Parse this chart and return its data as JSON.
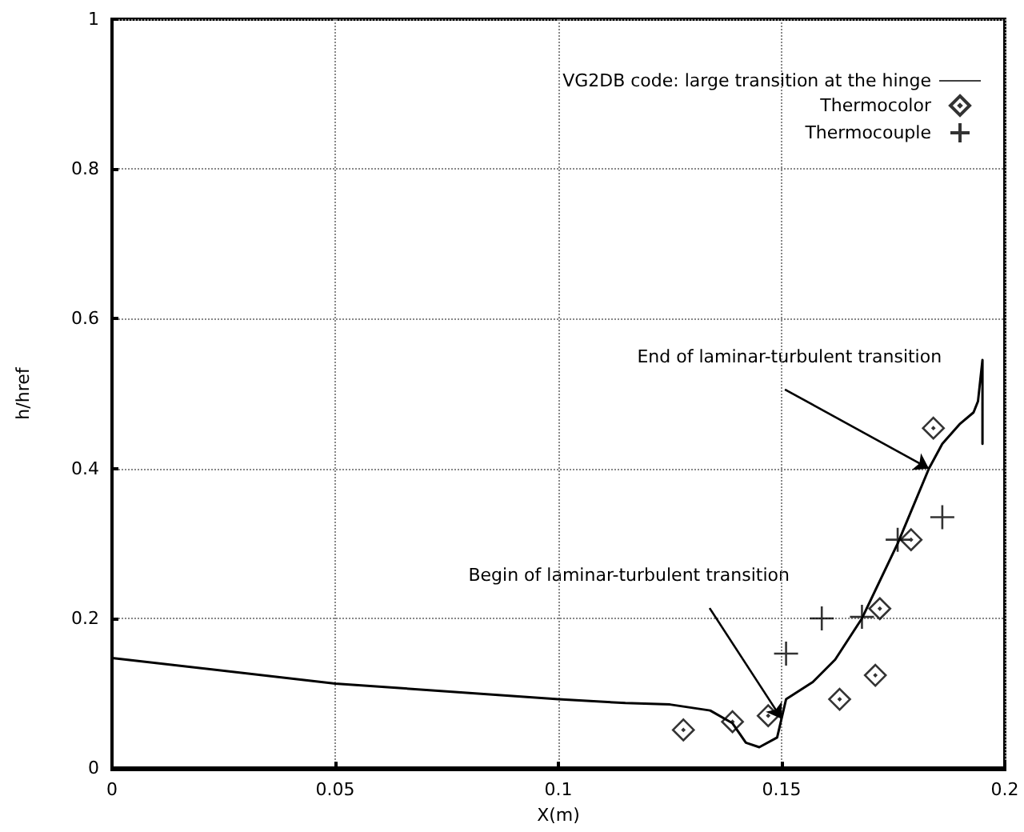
{
  "chart_data": {
    "type": "line",
    "xlabel": "X(m)",
    "ylabel": "h/href",
    "xlim": [
      0,
      0.2
    ],
    "xticks": [
      0,
      0.05,
      0.1,
      0.15,
      0.2
    ],
    "ylim": [
      0,
      1
    ],
    "yticks": [
      0,
      0.2,
      0.4,
      0.6,
      0.8,
      1
    ],
    "grid": true,
    "legend": "top right",
    "series": [
      {
        "name": "VG2DB code: large transition at the hinge",
        "color": "#000000",
        "marker": "none",
        "x": [
          0,
          0.05,
          0.1,
          0.115,
          0.125,
          0.134,
          0.139,
          0.142,
          0.145,
          0.149,
          0.151,
          0.157,
          0.162,
          0.168,
          0.176,
          0.183,
          0.186,
          0.19,
          0.193,
          0.194,
          0.195,
          0.195
        ],
        "values": [
          0.147,
          0.113,
          0.092,
          0.087,
          0.085,
          0.077,
          0.06,
          0.034,
          0.028,
          0.041,
          0.092,
          0.115,
          0.145,
          0.2,
          0.3,
          0.4,
          0.433,
          0.46,
          0.475,
          0.49,
          0.545,
          0.433
        ]
      },
      {
        "name": "Thermocolor",
        "type": "scatter",
        "color": "#000000",
        "marker": "diamond",
        "x": [
          0.128,
          0.139,
          0.147,
          0.163,
          0.171,
          0.172,
          0.179,
          0.184
        ],
        "values": [
          0.051,
          0.062,
          0.07,
          0.092,
          0.124,
          0.213,
          0.305,
          0.454
        ]
      },
      {
        "name": "Thermocouple",
        "type": "scatter",
        "color": "#000000",
        "marker": "cross",
        "x": [
          0.151,
          0.159,
          0.168,
          0.176,
          0.186
        ],
        "values": [
          0.153,
          0.2,
          0.202,
          0.305,
          0.335
        ]
      }
    ],
    "annotations": [
      {
        "text": "End of laminar-turbulent transition",
        "x": 0.183,
        "y": 0.4
      },
      {
        "text": "Begin of laminar-turbulent transition",
        "x": 0.15,
        "y": 0.066
      }
    ]
  }
}
